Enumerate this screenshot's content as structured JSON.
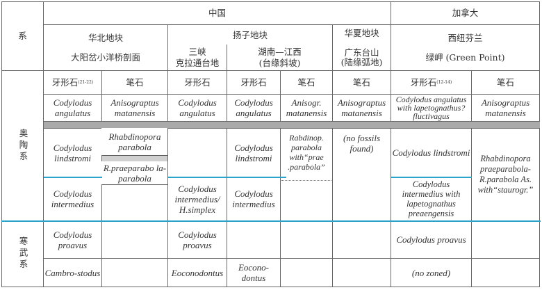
{
  "header": {
    "system": "系",
    "china": "中国",
    "canada": "加拿大",
    "north_china_block": "华北地块",
    "north_china_section": "大阳岔小洋桥剖面",
    "yangtze_block": "扬子地块",
    "three_gorges": "三峡\n克拉通台地",
    "hunan_jiangxi": "湖南—江西\n(台缘斜坡)",
    "cathaysia_block": "华夏地块\n\n广东台山\n(陆缘弧地)",
    "west_newfoundland": "西纽芬兰\n\n绿岬 (Green Point)"
  },
  "columns": {
    "conodont": "牙形石",
    "graptolite": "笔石",
    "ref_1": "(21-22)",
    "ref_2": "(12-14)"
  },
  "systems": {
    "ordovician": "奥陶系",
    "cambrian": "寒武系"
  },
  "cells": {
    "c1_angulatus": "Codylodus angulatus",
    "c2_angulatus": "Anisograptus matanensis",
    "c3_angulatus": "Codylodus angulatus",
    "c4_angulatus": "Codylodus angulatus",
    "c5_angulatus": "Anisogr. matanensis",
    "c6_angulatus": "Anisograptus matanensis",
    "c7_angulatus": "Codylodus angulatus with lapetognathus? fluctivagus",
    "c8_angulatus": "Anisograptus matanensis",
    "c1_lindstromi": "Codylodus lindstromi",
    "c2_parabola": "Rhabdinopora parabola",
    "c2_praeparabola": "R.praeparabo la-parabola",
    "c4_lindstromi": "Codylodus lindstromi",
    "c5_rabdinop": "Rabdinop. parabola with“prae .parabola”",
    "c6_nofossils": "(no fossils found)",
    "c7_lindstromi": "Codylodus lindstromi",
    "c8_rhabdinopora": "Rhabdinopora praeparabola-R.parabola As. with“staurogr.”",
    "c1_intermedius": "Codylodus intermedius",
    "c3_intermedius": "Codylodus intermedius/ H.simplex",
    "c4_intermedius": "Codylodus intermedius",
    "c7_intermedius": "Codylodus intermedius with lapetognathus preaengensis",
    "c1_proavus": "Codylodus proavus",
    "c3_proavus": "Codylodus proavus",
    "c7_proavus": "Codylodus proavus",
    "c1_cambro": "Cambro-stodus",
    "c3_eocono": "Eoconodontus",
    "c4_eocono": "Eocono-dontus",
    "c7_nozoned": "(no zoned)"
  },
  "colors": {
    "band": "#aaaaaa",
    "boundary": "#29a3c9"
  }
}
